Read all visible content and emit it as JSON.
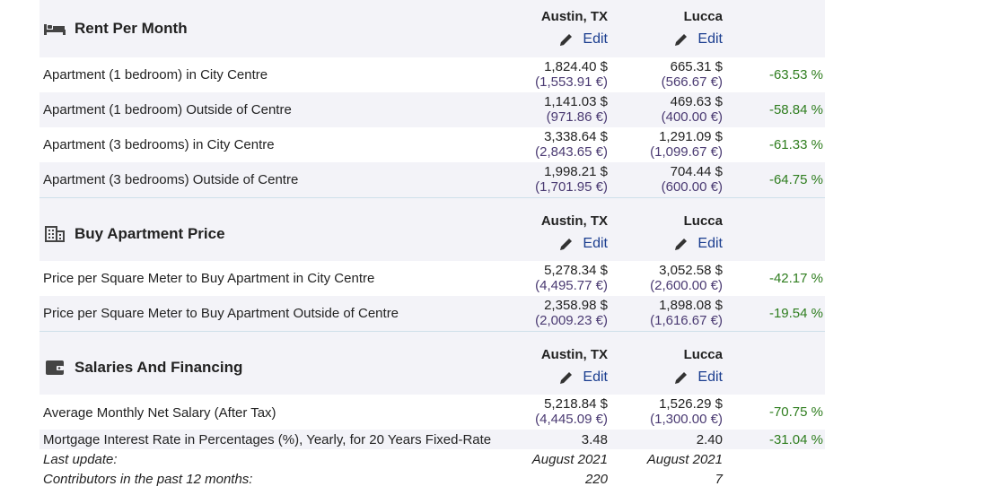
{
  "sections": [
    {
      "title": "Rent Per Month",
      "icon": "bed-icon",
      "cities": [
        "Austin, TX",
        "Lucca"
      ],
      "edit_label": "Edit",
      "rows": [
        {
          "label": "Apartment (1 bedroom) in City Centre",
          "v1_usd": "1,824.40 $",
          "v1_eur": "(1,553.91 €)",
          "v2_usd": "665.31 $",
          "v2_eur": "(566.67 €)",
          "diff": "-63.53 %"
        },
        {
          "label": "Apartment (1 bedroom) Outside of Centre",
          "v1_usd": "1,141.03 $",
          "v1_eur": "(971.86 €)",
          "v2_usd": "469.63 $",
          "v2_eur": "(400.00 €)",
          "diff": "-58.84 %"
        },
        {
          "label": "Apartment (3 bedrooms) in City Centre",
          "v1_usd": "3,338.64 $",
          "v1_eur": "(2,843.65 €)",
          "v2_usd": "1,291.09 $",
          "v2_eur": "(1,099.67 €)",
          "diff": "-61.33 %"
        },
        {
          "label": "Apartment (3 bedrooms) Outside of Centre",
          "v1_usd": "1,998.21 $",
          "v1_eur": "(1,701.95 €)",
          "v2_usd": "704.44 $",
          "v2_eur": "(600.00 €)",
          "diff": "-64.75 %"
        }
      ]
    },
    {
      "title": "Buy Apartment Price",
      "icon": "building-icon",
      "cities": [
        "Austin, TX",
        "Lucca"
      ],
      "edit_label": "Edit",
      "rows": [
        {
          "label": "Price per Square Meter to Buy Apartment in City Centre",
          "v1_usd": "5,278.34 $",
          "v1_eur": "(4,495.77 €)",
          "v2_usd": "3,052.58 $",
          "v2_eur": "(2,600.00 €)",
          "diff": "-42.17 %"
        },
        {
          "label": "Price per Square Meter to Buy Apartment Outside of Centre",
          "v1_usd": "2,358.98 $",
          "v1_eur": "(2,009.23 €)",
          "v2_usd": "1,898.08 $",
          "v2_eur": "(1,616.67 €)",
          "diff": "-19.54 %"
        }
      ]
    },
    {
      "title": "Salaries And Financing",
      "icon": "wallet-icon",
      "cities": [
        "Austin, TX",
        "Lucca"
      ],
      "edit_label": "Edit",
      "rows": [
        {
          "label": "Average Monthly Net Salary (After Tax)",
          "v1_usd": "5,218.84 $",
          "v1_eur": "(4,445.09 €)",
          "v2_usd": "1,526.29 $",
          "v2_eur": "(1,300.00 €)",
          "diff": "-70.75 %"
        }
      ],
      "simple_rows": [
        {
          "label": "Mortgage Interest Rate in Percentages (%), Yearly, for 20 Years Fixed-Rate",
          "v1": "3.48",
          "v2": "2.40",
          "diff": "-31.04 %"
        }
      ]
    }
  ],
  "footer": {
    "last_update_label": "Last update:",
    "last_update_v1": "August 2021",
    "last_update_v2": "August 2021",
    "contributors_label": "Contributors in the past 12 months:",
    "contributors_v1": "220",
    "contributors_v2": "7"
  },
  "colors": {
    "header_bg": "#f3f3f8",
    "edit_link": "#1a3d8f",
    "eur_text": "#4a3a72",
    "diff_green": "#2e7d1e"
  }
}
